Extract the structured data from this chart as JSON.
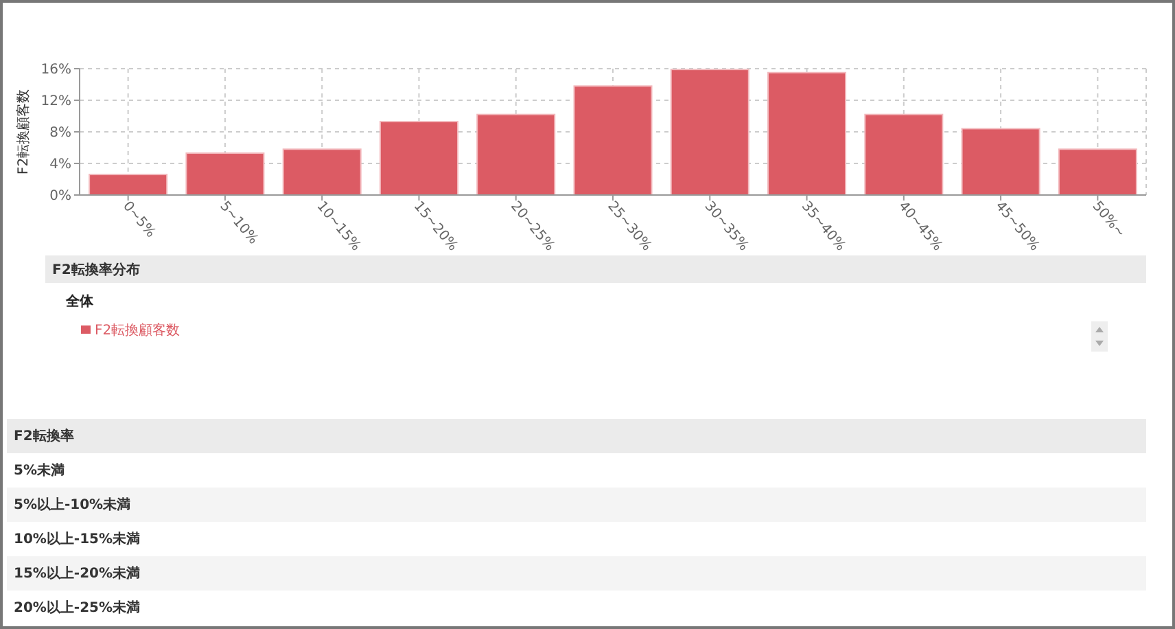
{
  "chart_data": {
    "type": "bar",
    "ylabel": "F2転換顧客数",
    "categories": [
      "0~5%",
      "5~10%",
      "10~15%",
      "15~20%",
      "20~25%",
      "25~30%",
      "30~35%",
      "35~40%",
      "40~45%",
      "45~50%",
      "50%~"
    ],
    "series": [
      {
        "name": "F2転換顧客数",
        "color": "#dc5b64",
        "values": [
          2.6,
          5.3,
          5.8,
          9.3,
          10.2,
          13.8,
          15.9,
          15.5,
          10.2,
          8.4,
          5.8
        ]
      }
    ],
    "ylim": [
      0,
      16
    ],
    "yticks": [
      {
        "value": 0,
        "label": "0%"
      },
      {
        "value": 4,
        "label": "4%"
      },
      {
        "value": 8,
        "label": "8%"
      },
      {
        "value": 12,
        "label": "12%"
      },
      {
        "value": 16,
        "label": "16%"
      }
    ],
    "grid": true,
    "legend": "bottom",
    "legend_title": "全体",
    "annotations": [
      "F2転換率分布",
      "F2転換率",
      "5%未満",
      "5%以上-10%未満",
      "10%以上-15%未満",
      "15%以上-20%未満",
      "20%以上-25%未満"
    ]
  }
}
